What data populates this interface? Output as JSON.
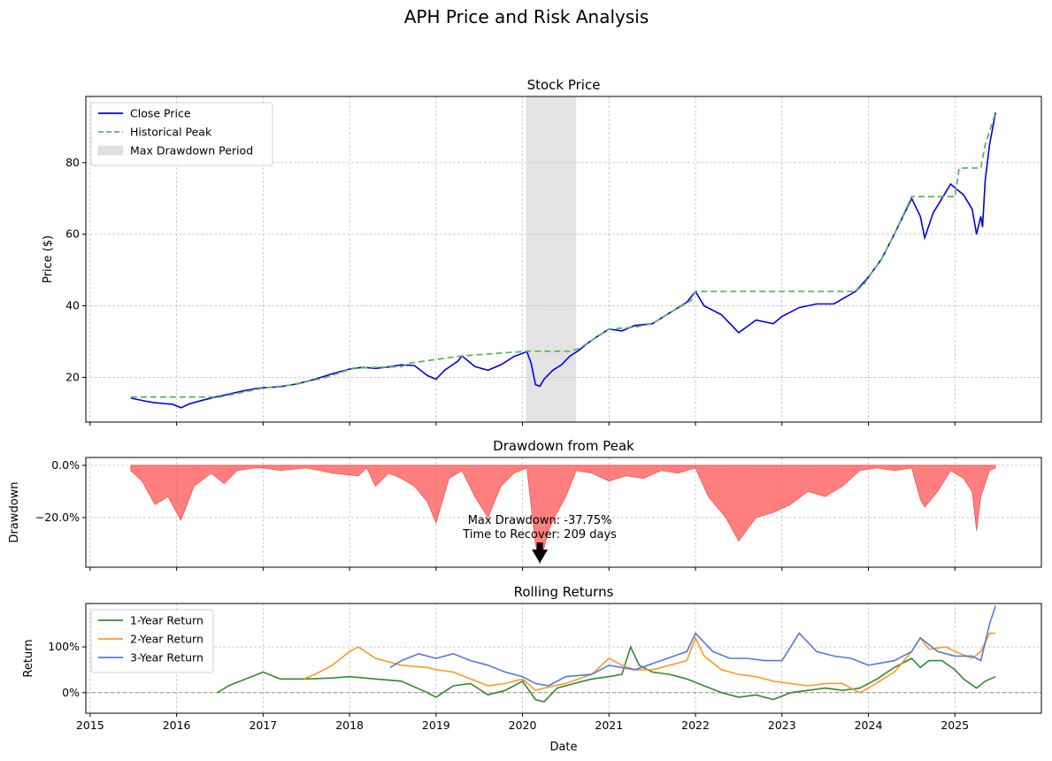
{
  "figure": {
    "title": "APH Price and Risk Analysis"
  },
  "colors": {
    "close": "#0000ee",
    "peak": "#5cb85c",
    "drawdown_fill": "#ff5555",
    "drawdown_line": "#ff0000",
    "shade": "#cccccc",
    "r1": "#2e8b2e",
    "r2": "#ff9922",
    "r3": "#5577dd",
    "grid": "#b0b0b0"
  },
  "x_axis": {
    "label": "Date",
    "ticks": [
      "2015",
      "2016",
      "2017",
      "2018",
      "2019",
      "2020",
      "2021",
      "2022",
      "2023",
      "2024",
      "2025"
    ],
    "range": [
      2014.95,
      2026.0
    ]
  },
  "chart_data": [
    {
      "type": "line",
      "title": "Stock Price",
      "ylabel": "Price ($)",
      "ylim": [
        7.5,
        98.5
      ],
      "yticks": [
        "20",
        "40",
        "60",
        "80"
      ],
      "ytick_values": [
        20,
        40,
        60,
        80
      ],
      "grid": true,
      "legend_position": "top-left",
      "legend": [
        "Close Price",
        "Historical Peak",
        "Max Drawdown Period"
      ],
      "max_drawdown_period": [
        2020.04,
        2020.62
      ],
      "series": [
        {
          "name": "Close Price",
          "style": "solid",
          "x": [
            2015.47,
            2015.55,
            2015.65,
            2015.75,
            2015.85,
            2015.95,
            2016.05,
            2016.15,
            2016.3,
            2016.45,
            2016.6,
            2016.75,
            2016.9,
            2017.0,
            2017.2,
            2017.4,
            2017.6,
            2017.8,
            2018.0,
            2018.15,
            2018.3,
            2018.45,
            2018.6,
            2018.75,
            2018.9,
            2019.0,
            2019.1,
            2019.25,
            2019.3,
            2019.45,
            2019.6,
            2019.75,
            2019.9,
            2020.05,
            2020.1,
            2020.15,
            2020.2,
            2020.25,
            2020.35,
            2020.45,
            2020.55,
            2020.65,
            2020.75,
            2020.9,
            2021.0,
            2021.15,
            2021.3,
            2021.5,
            2021.7,
            2021.9,
            2022.0,
            2022.1,
            2022.3,
            2022.5,
            2022.7,
            2022.9,
            2023.0,
            2023.2,
            2023.4,
            2023.6,
            2023.85,
            2024.0,
            2024.15,
            2024.3,
            2024.5,
            2024.6,
            2024.65,
            2024.75,
            2024.85,
            2024.95,
            2025.0,
            2025.1,
            2025.2,
            2025.25,
            2025.3,
            2025.32,
            2025.35,
            2025.4,
            2025.47
          ],
          "y": [
            14.2,
            13.8,
            13.3,
            12.9,
            12.7,
            12.5,
            11.5,
            12.6,
            13.6,
            14.5,
            15.3,
            16.1,
            16.8,
            17.1,
            17.4,
            18.2,
            19.5,
            21.0,
            22.3,
            22.8,
            22.5,
            22.9,
            23.5,
            23.3,
            20.5,
            19.5,
            22.0,
            24.5,
            26.0,
            23.0,
            22.0,
            23.5,
            25.8,
            27.2,
            24.0,
            18.0,
            17.5,
            19.5,
            22.0,
            23.5,
            26.0,
            27.5,
            29.5,
            32.0,
            33.5,
            33.0,
            34.5,
            35.0,
            38.0,
            41.0,
            44.0,
            40.0,
            37.5,
            32.5,
            36.0,
            35.0,
            37.0,
            39.5,
            40.5,
            40.5,
            44.0,
            48.0,
            53.0,
            60.0,
            70.0,
            65.0,
            59.0,
            66.0,
            70.0,
            74.0,
            73.0,
            71.0,
            67.0,
            60.0,
            65.0,
            62.0,
            75.0,
            85.0,
            94.0
          ]
        },
        {
          "name": "Historical Peak",
          "style": "dashed",
          "x": [
            2015.47,
            2016.5,
            2016.7,
            2017.0,
            2017.3,
            2017.7,
            2018.05,
            2018.6,
            2018.7,
            2019.3,
            2020.05,
            2020.55,
            2020.65,
            2021.0,
            2021.3,
            2021.5,
            2021.7,
            2021.95,
            2022.0,
            2023.85,
            2023.95,
            2024.0,
            2024.15,
            2024.3,
            2024.5,
            2025.0,
            2025.05,
            2025.3,
            2025.35,
            2025.47
          ],
          "y": [
            14.5,
            14.5,
            15.5,
            17.0,
            17.8,
            19.8,
            22.6,
            23.0,
            24.0,
            26.0,
            27.3,
            27.3,
            28.0,
            33.5,
            34.0,
            35.0,
            38.0,
            41.5,
            44.0,
            44.0,
            46.0,
            48.0,
            53.0,
            60.0,
            70.5,
            70.5,
            78.5,
            78.5,
            85.0,
            94.0
          ]
        }
      ]
    },
    {
      "type": "area",
      "title": "Drawdown from Peak",
      "ylabel": "Drawdown",
      "ylim": [
        -0.39,
        0.03
      ],
      "yticks": [
        "0.0%",
        "−20.0%"
      ],
      "ytick_values": [
        0.0,
        -0.2
      ],
      "grid": true,
      "annotation": {
        "lines": [
          "Max Drawdown: -37.75%",
          "Time to Recover: 209 days"
        ],
        "x": 2020.2,
        "y": -0.3775
      },
      "series": [
        {
          "name": "Drawdown",
          "x": [
            2015.47,
            2015.6,
            2015.75,
            2015.9,
            2016.05,
            2016.2,
            2016.4,
            2016.55,
            2016.7,
            2016.9,
            2017.0,
            2017.2,
            2017.5,
            2017.8,
            2018.1,
            2018.2,
            2018.3,
            2018.45,
            2018.6,
            2018.75,
            2018.9,
            2019.0,
            2019.15,
            2019.3,
            2019.45,
            2019.6,
            2019.75,
            2019.9,
            2020.05,
            2020.15,
            2020.2,
            2020.3,
            2020.4,
            2020.5,
            2020.62,
            2020.8,
            2021.0,
            2021.2,
            2021.4,
            2021.6,
            2021.8,
            2022.0,
            2022.15,
            2022.35,
            2022.5,
            2022.7,
            2022.9,
            2023.1,
            2023.3,
            2023.5,
            2023.7,
            2023.9,
            2024.1,
            2024.3,
            2024.5,
            2024.6,
            2024.65,
            2024.8,
            2024.95,
            2025.1,
            2025.2,
            2025.25,
            2025.3,
            2025.4,
            2025.47
          ],
          "y": [
            -0.02,
            -0.06,
            -0.15,
            -0.12,
            -0.21,
            -0.08,
            -0.03,
            -0.07,
            -0.02,
            -0.01,
            -0.01,
            -0.02,
            -0.01,
            -0.03,
            -0.04,
            -0.01,
            -0.08,
            -0.03,
            -0.05,
            -0.08,
            -0.14,
            -0.22,
            -0.05,
            -0.02,
            -0.12,
            -0.2,
            -0.08,
            -0.03,
            -0.01,
            -0.3,
            -0.3775,
            -0.25,
            -0.18,
            -0.12,
            -0.02,
            -0.03,
            -0.06,
            -0.04,
            -0.05,
            -0.02,
            -0.03,
            -0.01,
            -0.12,
            -0.2,
            -0.29,
            -0.2,
            -0.18,
            -0.15,
            -0.1,
            -0.12,
            -0.08,
            -0.02,
            -0.01,
            -0.02,
            -0.01,
            -0.13,
            -0.16,
            -0.1,
            -0.02,
            -0.05,
            -0.1,
            -0.25,
            -0.12,
            -0.02,
            -0.01
          ]
        }
      ]
    },
    {
      "type": "line",
      "title": "Rolling Returns",
      "ylabel": "Return",
      "ylim": [
        -0.45,
        1.95
      ],
      "yticks": [
        "0%",
        "100%"
      ],
      "ytick_values": [
        0.0,
        1.0
      ],
      "grid": true,
      "legend_position": "top-left",
      "legend": [
        "1-Year Return",
        "2-Year Return",
        "3-Year Return"
      ],
      "series": [
        {
          "name": "1-Year Return",
          "x": [
            2016.47,
            2016.6,
            2016.8,
            2017.0,
            2017.2,
            2017.5,
            2017.8,
            2018.0,
            2018.3,
            2018.6,
            2018.9,
            2019.0,
            2019.2,
            2019.4,
            2019.6,
            2019.8,
            2020.0,
            2020.15,
            2020.25,
            2020.4,
            2020.6,
            2020.8,
            2021.0,
            2021.15,
            2021.25,
            2021.35,
            2021.5,
            2021.7,
            2021.9,
            2022.1,
            2022.3,
            2022.5,
            2022.7,
            2022.9,
            2023.1,
            2023.3,
            2023.5,
            2023.7,
            2023.9,
            2024.1,
            2024.3,
            2024.5,
            2024.6,
            2024.7,
            2024.85,
            2025.0,
            2025.1,
            2025.25,
            2025.35,
            2025.47
          ],
          "y": [
            0.0,
            0.15,
            0.3,
            0.45,
            0.3,
            0.3,
            0.32,
            0.35,
            0.3,
            0.25,
            0.0,
            -0.1,
            0.15,
            0.2,
            -0.05,
            0.05,
            0.25,
            -0.15,
            -0.2,
            0.1,
            0.2,
            0.3,
            0.35,
            0.4,
            1.0,
            0.6,
            0.45,
            0.4,
            0.3,
            0.15,
            0.0,
            -0.1,
            -0.05,
            -0.15,
            0.0,
            0.05,
            0.1,
            0.05,
            0.1,
            0.3,
            0.55,
            0.75,
            0.55,
            0.7,
            0.7,
            0.5,
            0.3,
            0.1,
            0.25,
            0.35
          ]
        },
        {
          "name": "2-Year Return",
          "x": [
            2017.47,
            2017.6,
            2017.8,
            2018.0,
            2018.1,
            2018.3,
            2018.6,
            2018.9,
            2019.0,
            2019.2,
            2019.4,
            2019.6,
            2019.8,
            2020.0,
            2020.15,
            2020.25,
            2020.5,
            2020.8,
            2021.0,
            2021.15,
            2021.3,
            2021.5,
            2021.7,
            2021.9,
            2022.0,
            2022.1,
            2022.3,
            2022.5,
            2022.7,
            2022.9,
            2023.1,
            2023.3,
            2023.5,
            2023.7,
            2023.9,
            2024.0,
            2024.3,
            2024.5,
            2024.6,
            2024.7,
            2024.9,
            2025.0,
            2025.2,
            2025.3,
            2025.4,
            2025.47
          ],
          "y": [
            0.3,
            0.4,
            0.6,
            0.9,
            1.0,
            0.75,
            0.6,
            0.55,
            0.5,
            0.45,
            0.3,
            0.15,
            0.2,
            0.3,
            0.05,
            0.1,
            0.2,
            0.4,
            0.75,
            0.6,
            0.5,
            0.5,
            0.6,
            0.7,
            1.2,
            0.8,
            0.5,
            0.4,
            0.35,
            0.25,
            0.2,
            0.15,
            0.2,
            0.2,
            0.0,
            0.1,
            0.45,
            0.9,
            1.2,
            0.95,
            1.0,
            0.9,
            0.75,
            0.9,
            1.3,
            1.3
          ]
        },
        {
          "name": "3-Year Return",
          "x": [
            2018.47,
            2018.6,
            2018.8,
            2019.0,
            2019.2,
            2019.4,
            2019.6,
            2019.8,
            2020.0,
            2020.15,
            2020.3,
            2020.5,
            2020.8,
            2021.0,
            2021.3,
            2021.6,
            2021.9,
            2022.0,
            2022.2,
            2022.4,
            2022.6,
            2022.8,
            2023.0,
            2023.2,
            2023.4,
            2023.6,
            2023.8,
            2024.0,
            2024.3,
            2024.5,
            2024.6,
            2024.8,
            2025.0,
            2025.2,
            2025.3,
            2025.4,
            2025.47
          ],
          "y": [
            0.55,
            0.7,
            0.85,
            0.75,
            0.85,
            0.7,
            0.6,
            0.45,
            0.35,
            0.2,
            0.15,
            0.35,
            0.4,
            0.6,
            0.5,
            0.7,
            0.9,
            1.3,
            0.9,
            0.75,
            0.75,
            0.7,
            0.7,
            1.3,
            0.9,
            0.8,
            0.75,
            0.6,
            0.7,
            0.9,
            1.2,
            0.9,
            0.8,
            0.8,
            0.7,
            1.5,
            1.9
          ]
        }
      ]
    }
  ]
}
